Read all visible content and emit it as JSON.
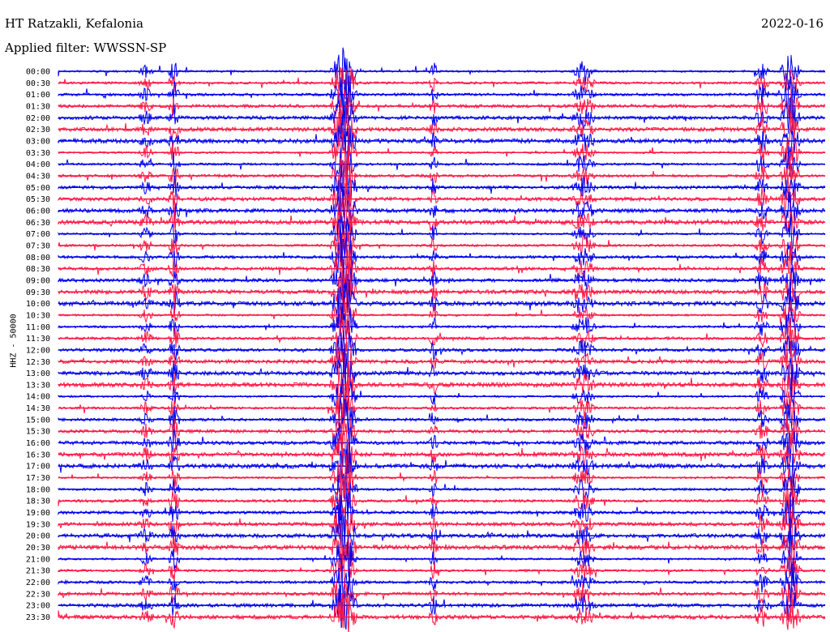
{
  "header": {
    "station": "HT Ratzakli, Kefalonia",
    "date": "2022-0-16",
    "filter": "Applied filter: WWSSN-SP"
  },
  "chart_data": {
    "type": "line",
    "ylabel": "HHZ - 50000",
    "colors": [
      "#0000ee",
      "#ff1744"
    ],
    "times": [
      "00:00",
      "00:30",
      "01:00",
      "01:30",
      "02:00",
      "02:30",
      "03:00",
      "03:30",
      "04:00",
      "04:30",
      "05:00",
      "05:30",
      "06:00",
      "06:30",
      "07:00",
      "07:30",
      "08:00",
      "08:30",
      "09:00",
      "09:30",
      "10:00",
      "10:30",
      "11:00",
      "11:30",
      "12:00",
      "12:30",
      "13:00",
      "13:30",
      "14:00",
      "14:30",
      "15:00",
      "15:30",
      "16:00",
      "16:30",
      "17:00",
      "17:30",
      "18:00",
      "18:30",
      "19:00",
      "19:30",
      "20:00",
      "20:30",
      "21:00",
      "21:30",
      "22:00",
      "22:30",
      "23:00",
      "23:30"
    ]
  }
}
